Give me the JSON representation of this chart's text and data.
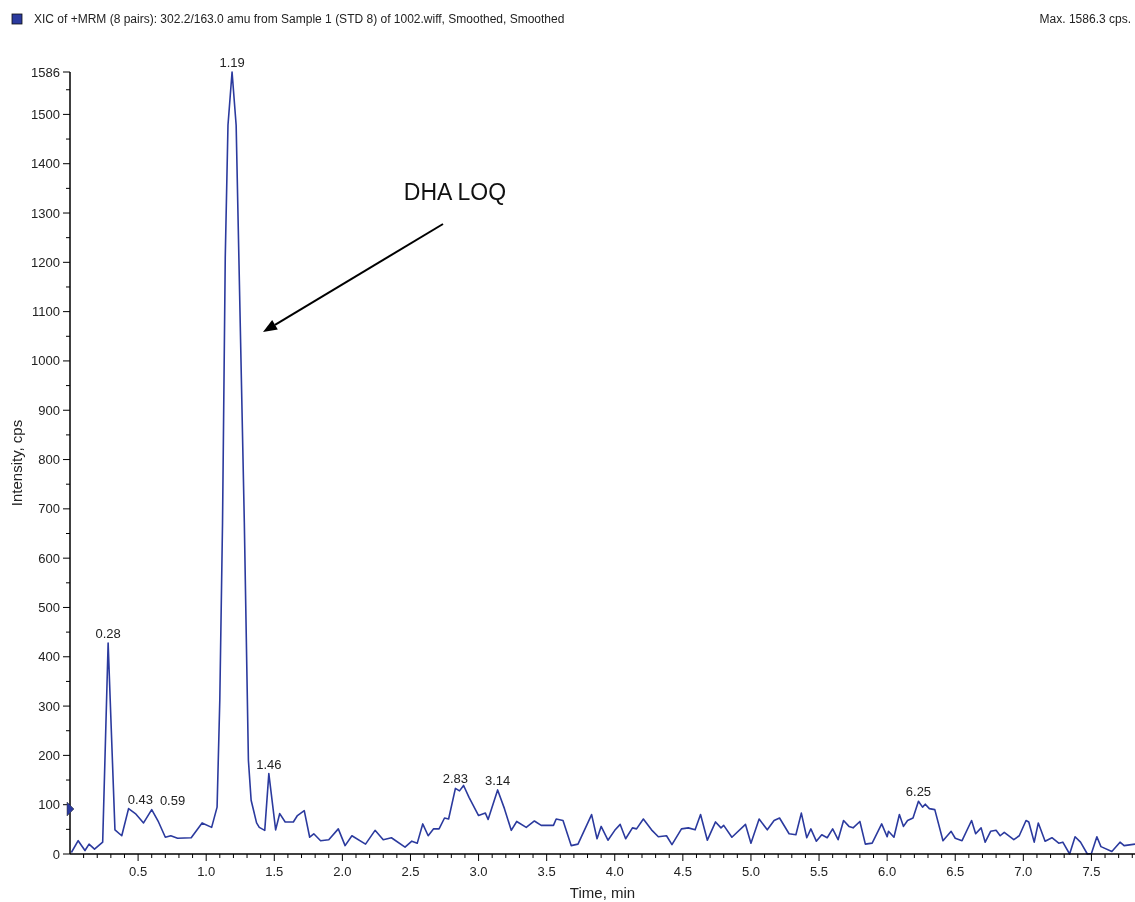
{
  "chart_data": {
    "type": "line",
    "xlabel": "Time, min",
    "ylabel": "Intensity, cps",
    "annotations": [
      "Max. 1586.3 cps.",
      "DHA LOQ",
      {
        "text": "0.28",
        "x": 0.28,
        "y": 428
      },
      {
        "text": "0.43",
        "x": 0.43,
        "y": 92
      },
      {
        "text": "0.59",
        "x": 0.6,
        "y": 90
      },
      {
        "text": "1.19",
        "x": 1.19,
        "y": 1586
      },
      {
        "text": "1.46",
        "x": 1.46,
        "y": 163
      },
      {
        "text": "2.83",
        "x": 2.83,
        "y": 133
      },
      {
        "text": "3.14",
        "x": 3.14,
        "y": 130
      },
      {
        "text": "6.25",
        "x": 6.23,
        "y": 107
      }
    ],
    "legend": "top left",
    "xlim": [
      0,
      7.82
    ],
    "ylim": [
      0,
      1586
    ],
    "xticks": [
      {
        "value": 0.1,
        "label": null
      },
      {
        "value": 0.2,
        "label": null
      },
      {
        "value": 0.3,
        "label": null
      },
      {
        "value": 0.4,
        "label": null
      },
      {
        "value": 0.5,
        "label": "0.5"
      },
      {
        "value": 0.6,
        "label": null
      },
      {
        "value": 0.7,
        "label": null
      },
      {
        "value": 0.8,
        "label": null
      },
      {
        "value": 0.9,
        "label": null
      },
      {
        "value": 1.0,
        "label": "1.0"
      },
      {
        "value": 1.1,
        "label": null
      },
      {
        "value": 1.2,
        "label": null
      },
      {
        "value": 1.3,
        "label": null
      },
      {
        "value": 1.4,
        "label": null
      },
      {
        "value": 1.5,
        "label": "1.5"
      },
      {
        "value": 1.6,
        "label": null
      },
      {
        "value": 1.7,
        "label": null
      },
      {
        "value": 1.8,
        "label": null
      },
      {
        "value": 1.9,
        "label": null
      },
      {
        "value": 2.0,
        "label": "2.0"
      },
      {
        "value": 2.1,
        "label": null
      },
      {
        "value": 2.2,
        "label": null
      },
      {
        "value": 2.3,
        "label": null
      },
      {
        "value": 2.4,
        "label": null
      },
      {
        "value": 2.5,
        "label": "2.5"
      },
      {
        "value": 2.6,
        "label": null
      },
      {
        "value": 2.7,
        "label": null
      },
      {
        "value": 2.8,
        "label": null
      },
      {
        "value": 2.9,
        "label": null
      },
      {
        "value": 3.0,
        "label": "3.0"
      },
      {
        "value": 3.1,
        "label": null
      },
      {
        "value": 3.2,
        "label": null
      },
      {
        "value": 3.3,
        "label": null
      },
      {
        "value": 3.4,
        "label": null
      },
      {
        "value": 3.5,
        "label": "3.5"
      },
      {
        "value": 3.6,
        "label": null
      },
      {
        "value": 3.7,
        "label": null
      },
      {
        "value": 3.8,
        "label": null
      },
      {
        "value": 3.9,
        "label": null
      },
      {
        "value": 4.0,
        "label": "4.0"
      },
      {
        "value": 4.1,
        "label": null
      },
      {
        "value": 4.2,
        "label": null
      },
      {
        "value": 4.3,
        "label": null
      },
      {
        "value": 4.4,
        "label": null
      },
      {
        "value": 4.5,
        "label": "4.5"
      },
      {
        "value": 4.6,
        "label": null
      },
      {
        "value": 4.7,
        "label": null
      },
      {
        "value": 4.8,
        "label": null
      },
      {
        "value": 4.9,
        "label": null
      },
      {
        "value": 5.0,
        "label": "5.0"
      },
      {
        "value": 5.1,
        "label": null
      },
      {
        "value": 5.2,
        "label": null
      },
      {
        "value": 5.3,
        "label": null
      },
      {
        "value": 5.4,
        "label": null
      },
      {
        "value": 5.5,
        "label": "5.5"
      },
      {
        "value": 5.6,
        "label": null
      },
      {
        "value": 5.7,
        "label": null
      },
      {
        "value": 5.8,
        "label": null
      },
      {
        "value": 5.9,
        "label": null
      },
      {
        "value": 6.0,
        "label": "6.0"
      },
      {
        "value": 6.1,
        "label": null
      },
      {
        "value": 6.2,
        "label": null
      },
      {
        "value": 6.3,
        "label": null
      },
      {
        "value": 6.4,
        "label": null
      },
      {
        "value": 6.5,
        "label": "6.5"
      },
      {
        "value": 6.6,
        "label": null
      },
      {
        "value": 6.7,
        "label": null
      },
      {
        "value": 6.8,
        "label": null
      },
      {
        "value": 6.9,
        "label": null
      },
      {
        "value": 7.0,
        "label": "7.0"
      },
      {
        "value": 7.1,
        "label": null
      },
      {
        "value": 7.2,
        "label": null
      },
      {
        "value": 7.3,
        "label": null
      },
      {
        "value": 7.4,
        "label": null
      },
      {
        "value": 7.5,
        "label": "7.5"
      },
      {
        "value": 7.6,
        "label": null
      },
      {
        "value": 7.7,
        "label": null
      },
      {
        "value": 7.8,
        "label": null
      }
    ],
    "yticks": [
      0,
      {
        "value": 50,
        "label": null
      },
      100,
      {
        "value": 150,
        "label": null
      },
      200,
      {
        "value": 250,
        "label": null
      },
      300,
      {
        "value": 350,
        "label": null
      },
      400,
      {
        "value": 450,
        "label": null
      },
      500,
      {
        "value": 550,
        "label": null
      },
      600,
      {
        "value": 650,
        "label": null
      },
      700,
      {
        "value": 750,
        "label": null
      },
      800,
      {
        "value": 850,
        "label": null
      },
      900,
      {
        "value": 950,
        "label": null
      },
      1000,
      {
        "value": 1050,
        "label": null
      },
      1100,
      {
        "value": 1150,
        "label": null
      },
      1200,
      {
        "value": 1250,
        "label": null
      },
      1300,
      {
        "value": 1350,
        "label": null
      },
      1400,
      {
        "value": 1450,
        "label": null
      },
      1500,
      {
        "value": 1550,
        "label": null
      },
      1586
    ],
    "series": [
      {
        "name": "XIC of +MRM (8 pairs): 302.2/163.0 amu from Sample 1 (STD 8) of 1002.wiff, Smoothed, Smoothed",
        "color": "#2b3a9e",
        "x": [
          0.01,
          0.06,
          0.11,
          0.14,
          0.18,
          0.24,
          0.28,
          0.33,
          0.38,
          0.43,
          0.48,
          0.54,
          0.6,
          0.65,
          0.7,
          0.74,
          0.79,
          0.89,
          0.97,
          1.04,
          1.08,
          1.1,
          1.12,
          1.14,
          1.16,
          1.19,
          1.22,
          1.24,
          1.28,
          1.31,
          1.33,
          1.37,
          1.39,
          1.43,
          1.46,
          1.51,
          1.54,
          1.58,
          1.64,
          1.67,
          1.72,
          1.76,
          1.79,
          1.84,
          1.9,
          1.97,
          2.02,
          2.07,
          2.17,
          2.24,
          2.3,
          2.36,
          2.46,
          2.51,
          2.55,
          2.59,
          2.63,
          2.67,
          2.71,
          2.75,
          2.78,
          2.83,
          2.86,
          2.89,
          2.93,
          3.0,
          3.05,
          3.07,
          3.14,
          3.19,
          3.24,
          3.28,
          3.35,
          3.41,
          3.46,
          3.55,
          3.57,
          3.62,
          3.68,
          3.73,
          3.83,
          3.87,
          3.9,
          3.95,
          4.0,
          4.04,
          4.08,
          4.13,
          4.16,
          4.21,
          4.27,
          4.32,
          4.38,
          4.42,
          4.49,
          4.54,
          4.59,
          4.63,
          4.68,
          4.74,
          4.78,
          4.8,
          4.86,
          4.96,
          5.0,
          5.06,
          5.12,
          5.17,
          5.21,
          5.28,
          5.33,
          5.37,
          5.41,
          5.44,
          5.48,
          5.52,
          5.56,
          5.6,
          5.64,
          5.68,
          5.72,
          5.75,
          5.8,
          5.84,
          5.89,
          5.96,
          6.0,
          6.01,
          6.05,
          6.09,
          6.12,
          6.15,
          6.19,
          6.23,
          6.26,
          6.28,
          6.31,
          6.35,
          6.41,
          6.47,
          6.5,
          6.55,
          6.62,
          6.65,
          6.69,
          6.72,
          6.76,
          6.8,
          6.83,
          6.86,
          6.93,
          6.97,
          7.02,
          7.04,
          7.08,
          7.11,
          7.16,
          7.21,
          7.26,
          7.29,
          7.34,
          7.38,
          7.42,
          7.47,
          7.5,
          7.54,
          7.57,
          7.65,
          7.71,
          7.74,
          7.82
        ],
        "values": [
          3,
          27,
          7,
          20,
          10,
          24,
          428,
          49,
          37,
          92,
          82,
          63,
          90,
          65,
          34,
          37,
          32,
          33,
          63,
          54,
          95,
          313,
          672,
          1210,
          1478,
          1586,
          1478,
          1210,
          672,
          190,
          109,
          63,
          54,
          48,
          163,
          49,
          82,
          65,
          65,
          78,
          88,
          34,
          41,
          27,
          29,
          51,
          17,
          37,
          20,
          48,
          29,
          33,
          14,
          26,
          22,
          61,
          37,
          51,
          51,
          73,
          71,
          133,
          128,
          139,
          115,
          78,
          83,
          70,
          130,
          92,
          48,
          66,
          54,
          67,
          58,
          58,
          71,
          68,
          17,
          20,
          80,
          31,
          56,
          28,
          48,
          60,
          31,
          53,
          51,
          71,
          49,
          35,
          37,
          19,
          51,
          53,
          49,
          80,
          28,
          65,
          53,
          58,
          34,
          60,
          22,
          71,
          49,
          68,
          73,
          41,
          39,
          83,
          33,
          51,
          26,
          39,
          33,
          51,
          29,
          68,
          56,
          53,
          66,
          20,
          22,
          61,
          35,
          46,
          34,
          80,
          56,
          68,
          73,
          107,
          95,
          101,
          92,
          90,
          27,
          46,
          32,
          27,
          68,
          41,
          53,
          24,
          46,
          48,
          37,
          44,
          29,
          37,
          68,
          65,
          24,
          63,
          26,
          33,
          22,
          24,
          0,
          35,
          24,
          0,
          1,
          35,
          15,
          5,
          24,
          17,
          20
        ]
      }
    ]
  }
}
